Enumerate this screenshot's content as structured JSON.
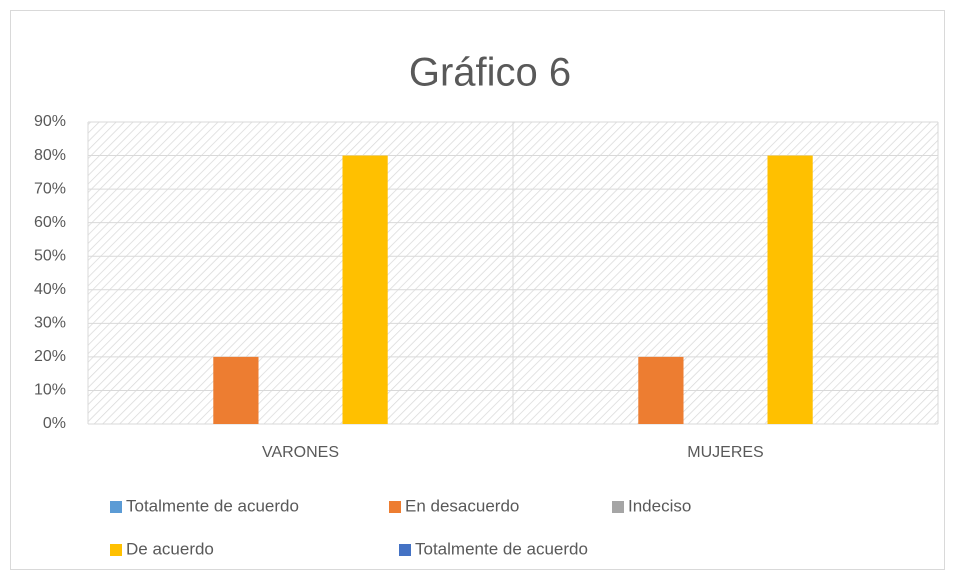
{
  "chart_data": {
    "type": "bar",
    "title": "Gráfico 6",
    "categories": [
      "VARONES",
      "MUJERES"
    ],
    "series": [
      {
        "name": "Totalmente de acuerdo",
        "color": "#5b9bd5",
        "values": [
          0,
          0
        ]
      },
      {
        "name": "En desacuerdo",
        "color": "#ed7d31",
        "values": [
          20,
          20
        ]
      },
      {
        "name": "Indeciso",
        "color": "#a5a5a5",
        "values": [
          0,
          0
        ]
      },
      {
        "name": "De acuerdo",
        "color": "#ffc000",
        "values": [
          80,
          80
        ]
      },
      {
        "name": "Totalmente de acuerdo",
        "color": "#4472c4",
        "values": [
          0,
          0
        ]
      }
    ],
    "ylim": [
      0,
      90
    ],
    "yticks": [
      {
        "value": 0,
        "label": "0%"
      },
      {
        "value": 10,
        "label": "10%"
      },
      {
        "value": 20,
        "label": "20%"
      },
      {
        "value": 30,
        "label": "30%"
      },
      {
        "value": 40,
        "label": "40%"
      },
      {
        "value": 50,
        "label": "50%"
      },
      {
        "value": 60,
        "label": "60%"
      },
      {
        "value": 70,
        "label": "70%"
      },
      {
        "value": 80,
        "label": "80%"
      },
      {
        "value": 90,
        "label": "90%"
      }
    ],
    "grid": true,
    "legend": "bottom"
  }
}
